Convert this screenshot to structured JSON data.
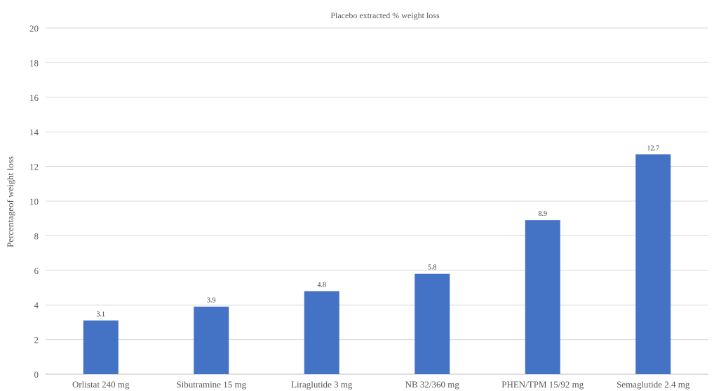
{
  "chart_data": {
    "type": "bar",
    "title": "Placebo extracted % weight loss",
    "xlabel": "",
    "ylabel": "Percentageof weight  loss",
    "categories": [
      "Orlistat 240 mg",
      "Sibutramine 15 mg",
      "Liraglutide 3 mg",
      "NB 32/360 mg",
      "PHEN/TPM 15/92 mg",
      "Semaglutide 2.4 mg"
    ],
    "values": [
      3.1,
      3.9,
      4.8,
      5.8,
      8.9,
      12.7
    ],
    "data_labels": [
      "3.1",
      "3.9",
      "4.8",
      "5.8",
      "8.9",
      "12.7"
    ],
    "ylim": [
      0,
      20
    ],
    "yticks": [
      0,
      2,
      4,
      6,
      8,
      10,
      12,
      14,
      16,
      18,
      20
    ],
    "grid": true,
    "legend": "none",
    "bar_color": "#4472c4"
  }
}
